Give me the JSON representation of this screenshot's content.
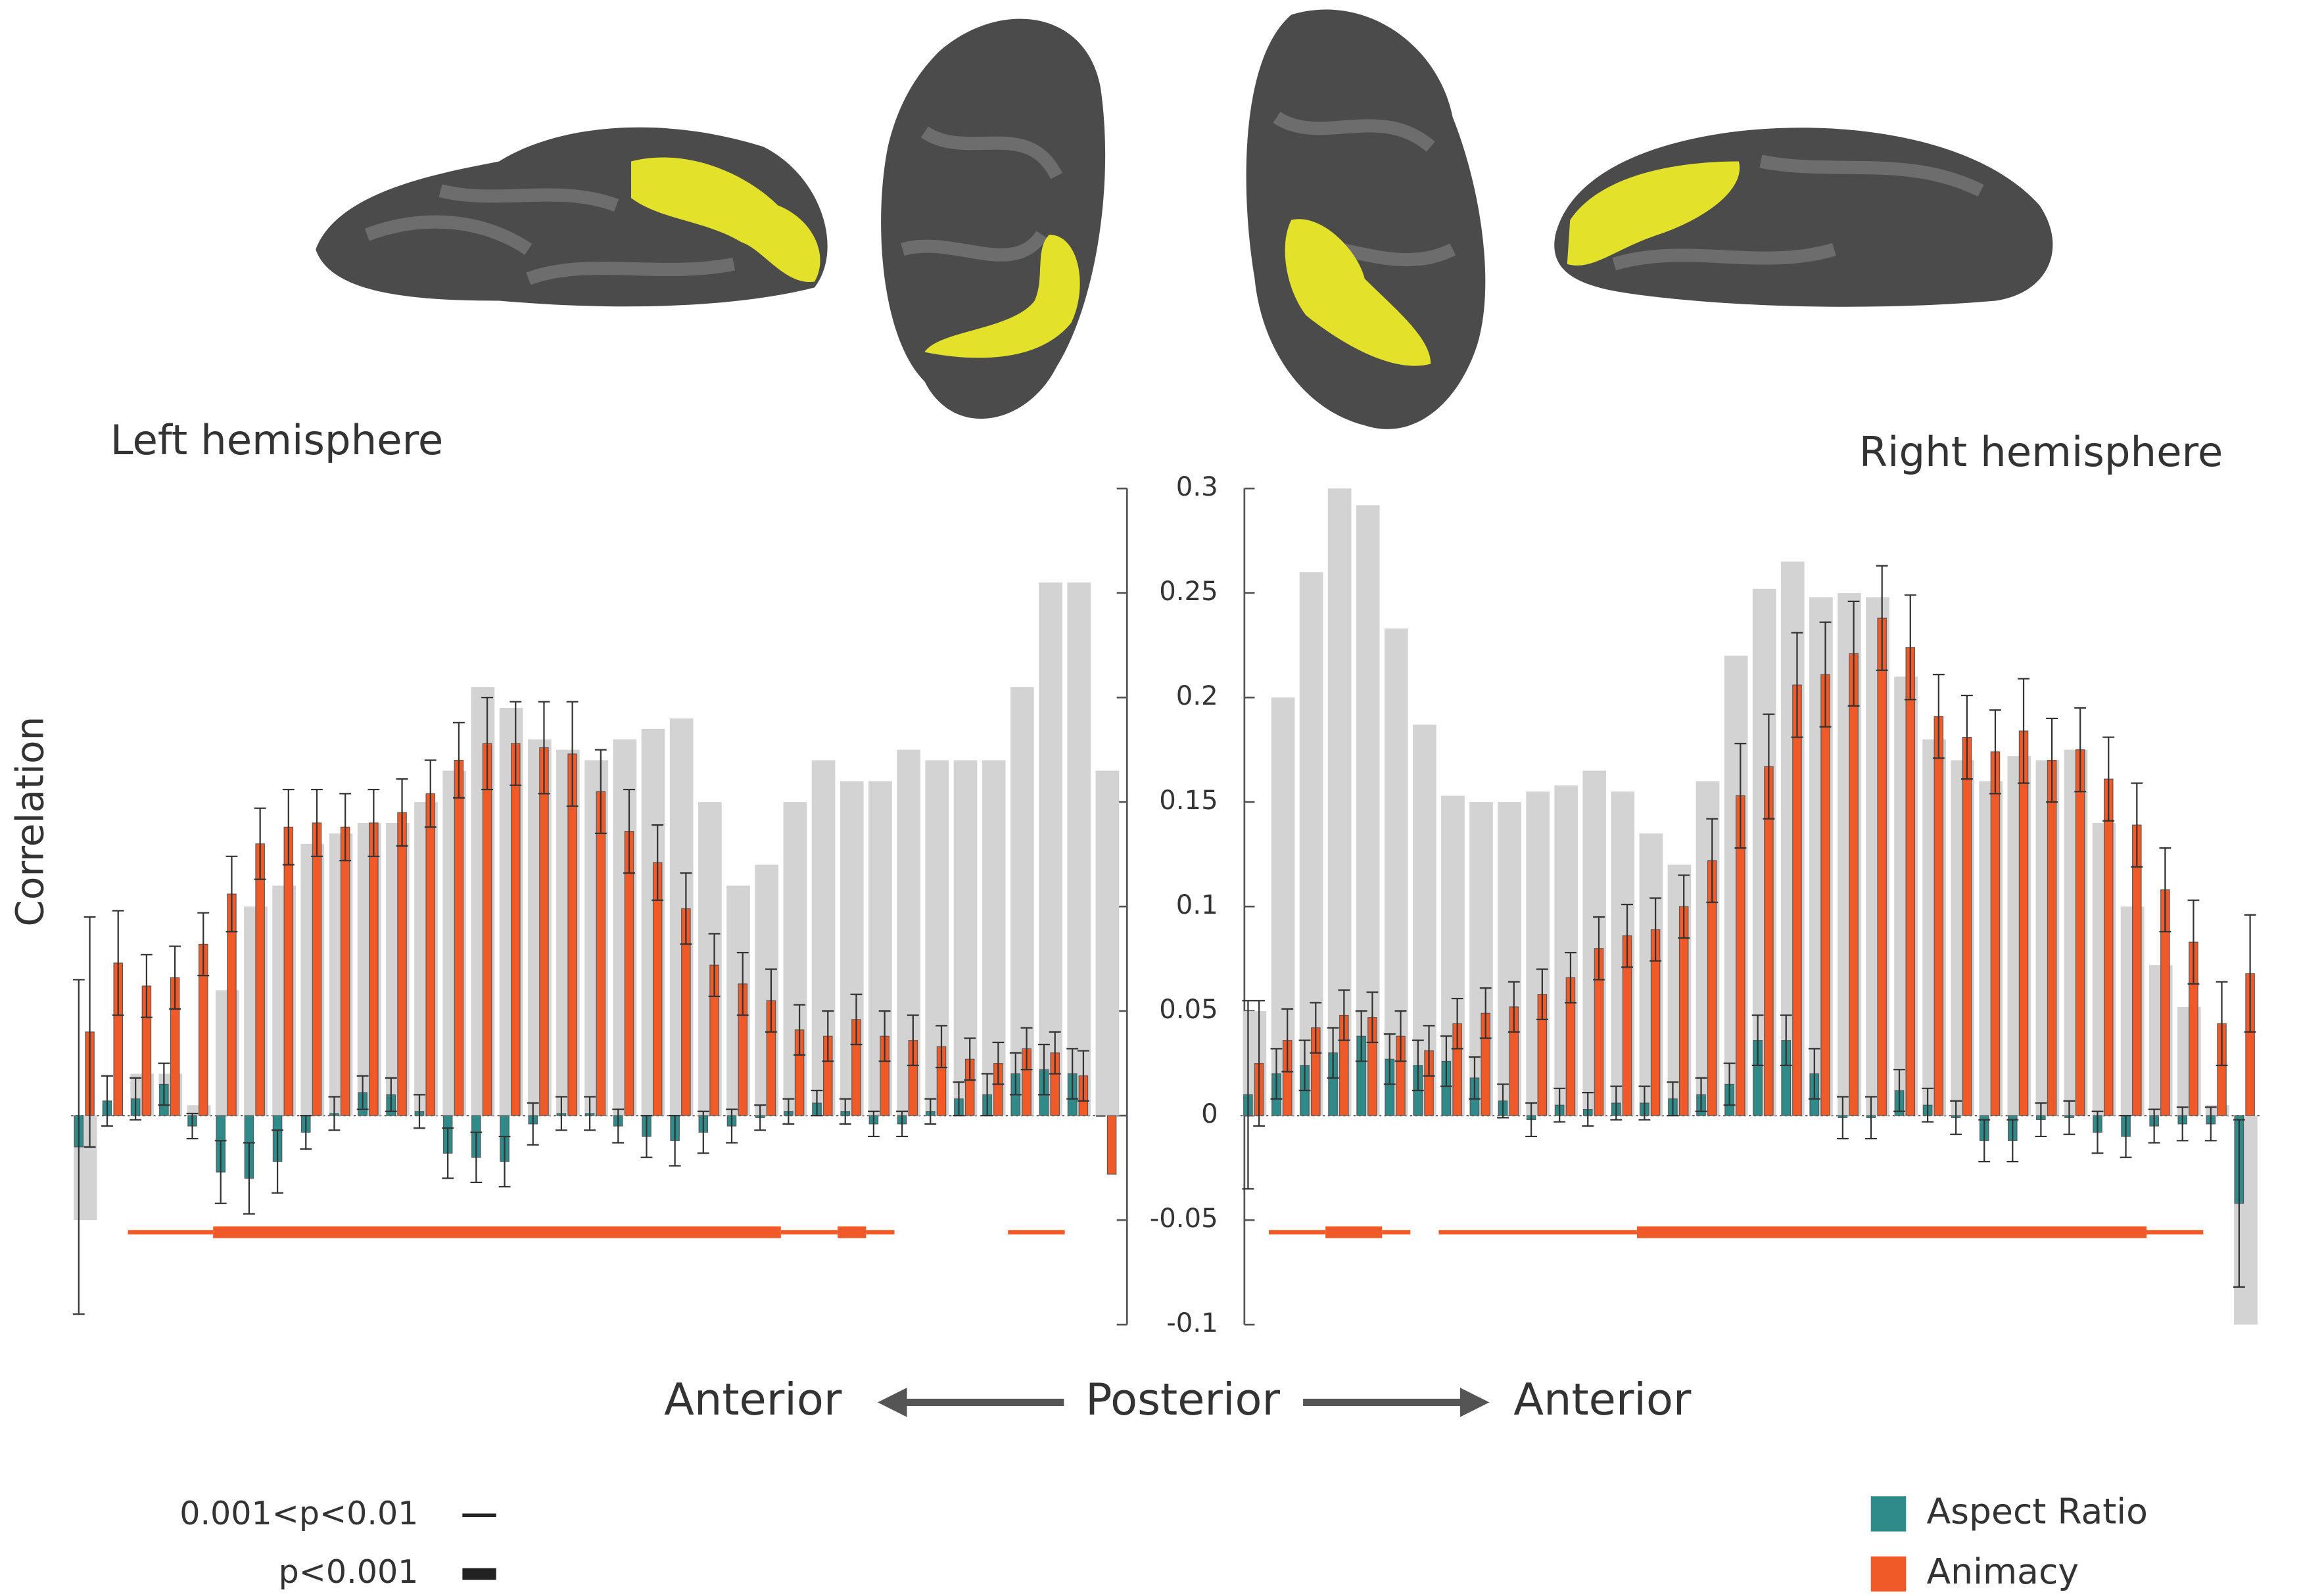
{
  "y_label": "Correlation",
  "direction": {
    "left": "Anterior",
    "center": "Posterior",
    "right": "Anterior"
  },
  "significance_legend": [
    {
      "label": "0.001<p<0.01",
      "thick": false
    },
    {
      "label": "p<0.001",
      "thick": true
    }
  ],
  "chart_data": [
    {
      "type": "bar",
      "title": "Left hemisphere",
      "ylim": [
        -0.1,
        0.3
      ],
      "yticks": [
        0.3,
        0.25,
        0.2,
        0.15,
        0.1,
        0.05,
        0,
        -0.05,
        -0.1
      ],
      "background": {
        "color": "#d3d3d3",
        "values": [
          -0.05,
          0.0,
          0.02,
          0.02,
          0.005,
          0.06,
          0.1,
          0.11,
          0.13,
          0.135,
          0.14,
          0.14,
          0.15,
          0.165,
          0.205,
          0.195,
          0.18,
          0.175,
          0.17,
          0.18,
          0.185,
          0.19,
          0.15,
          0.11,
          0.12,
          0.15,
          0.17,
          0.16,
          0.16,
          0.175,
          0.17,
          0.17,
          0.17,
          0.205,
          0.255,
          0.255,
          0.165
        ]
      },
      "series": [
        {
          "color": "#2e8b8a",
          "values": [
            -0.015,
            0.007,
            0.008,
            0.015,
            -0.005,
            -0.027,
            -0.03,
            -0.022,
            -0.008,
            0.001,
            0.011,
            0.01,
            0.002,
            -0.018,
            -0.02,
            -0.022,
            -0.004,
            0.001,
            0.001,
            -0.005,
            -0.01,
            -0.012,
            -0.008,
            -0.005,
            -0.001,
            0.002,
            0.006,
            0.002,
            -0.004,
            -0.004,
            0.002,
            0.008,
            0.01,
            0.02,
            0.022,
            0.02,
            0
          ],
          "errors": [
            0.08,
            0.012,
            0.01,
            0.01,
            0.006,
            0.015,
            0.017,
            0.015,
            0.008,
            0.008,
            0.008,
            0.008,
            0.008,
            0.012,
            0.012,
            0.012,
            0.01,
            0.008,
            0.008,
            0.008,
            0.01,
            0.012,
            0.01,
            0.008,
            0.006,
            0.006,
            0.006,
            0.006,
            0.006,
            0.006,
            0.006,
            0.008,
            0.01,
            0.01,
            0.012,
            0.012,
            0
          ]
        },
        {
          "color": "#f05a28",
          "values": [
            0.04,
            0.073,
            0.062,
            0.066,
            0.082,
            0.106,
            0.13,
            0.138,
            0.14,
            0.138,
            0.14,
            0.145,
            0.154,
            0.17,
            0.178,
            0.178,
            0.176,
            0.173,
            0.155,
            0.136,
            0.121,
            0.099,
            0.072,
            0.063,
            0.055,
            0.041,
            0.038,
            0.046,
            0.038,
            0.036,
            0.033,
            0.027,
            0.025,
            0.032,
            0.03,
            0.019,
            -0.028
          ],
          "errors": [
            0.055,
            0.025,
            0.015,
            0.015,
            0.015,
            0.018,
            0.017,
            0.018,
            0.016,
            0.016,
            0.016,
            0.016,
            0.016,
            0.018,
            0.022,
            0.02,
            0.022,
            0.025,
            0.02,
            0.02,
            0.018,
            0.017,
            0.015,
            0.015,
            0.015,
            0.012,
            0.012,
            0.012,
            0.012,
            0.012,
            0.01,
            0.01,
            0.01,
            0.01,
            0.01,
            0.012,
            0
          ]
        }
      ],
      "significance": [
        {
          "from": 2,
          "to": 4,
          "thick": false
        },
        {
          "from": 5,
          "to": 24,
          "thick": true
        },
        {
          "from": 25,
          "to": 26,
          "thick": false
        },
        {
          "from": 27,
          "to": 27,
          "thick": true
        },
        {
          "from": 28,
          "to": 28,
          "thick": false
        },
        {
          "from": 33,
          "to": 34,
          "thick": false
        }
      ]
    },
    {
      "type": "bar",
      "title": "Right hemisphere",
      "ylim": [
        -0.1,
        0.3
      ],
      "yticks": [
        0.3,
        0.25,
        0.2,
        0.15,
        0.1,
        0.05,
        0,
        -0.05,
        -0.1
      ],
      "background": {
        "color": "#d3d3d3",
        "values": [
          0.05,
          0.2,
          0.26,
          0.3,
          0.292,
          0.233,
          0.187,
          0.153,
          0.15,
          0.15,
          0.155,
          0.158,
          0.165,
          0.155,
          0.135,
          0.12,
          0.16,
          0.22,
          0.252,
          0.265,
          0.248,
          0.25,
          0.248,
          0.21,
          0.18,
          0.17,
          0.16,
          0.172,
          0.17,
          0.175,
          0.14,
          0.1,
          0.072,
          0.052,
          0.005,
          -0.1
        ]
      },
      "series": [
        {
          "name": "Aspect Ratio",
          "color": "#2e8b8a",
          "values": [
            0.01,
            0.02,
            0.024,
            0.03,
            0.038,
            0.027,
            0.024,
            0.026,
            0.018,
            0.007,
            -0.002,
            0.005,
            0.003,
            0.006,
            0.006,
            0.008,
            0.01,
            0.015,
            0.036,
            0.036,
            0.02,
            -0.001,
            -0.001,
            0.012,
            0.005,
            -0.001,
            -0.012,
            -0.012,
            -0.002,
            -0.001,
            -0.008,
            -0.01,
            -0.005,
            -0.004,
            -0.004,
            -0.042
          ],
          "errors": [
            0.045,
            0.012,
            0.012,
            0.012,
            0.012,
            0.012,
            0.012,
            0.012,
            0.01,
            0.008,
            0.008,
            0.008,
            0.008,
            0.008,
            0.008,
            0.008,
            0.008,
            0.01,
            0.012,
            0.012,
            0.012,
            0.01,
            0.01,
            0.01,
            0.008,
            0.008,
            0.01,
            0.01,
            0.008,
            0.008,
            0.01,
            0.01,
            0.008,
            0.008,
            0.008,
            0.04
          ]
        },
        {
          "name": "Animacy",
          "color": "#f05a28",
          "values": [
            0.025,
            0.036,
            0.042,
            0.048,
            0.047,
            0.038,
            0.031,
            0.044,
            0.049,
            0.052,
            0.058,
            0.066,
            0.08,
            0.086,
            0.089,
            0.1,
            0.122,
            0.153,
            0.167,
            0.206,
            0.211,
            0.221,
            0.238,
            0.224,
            0.191,
            0.181,
            0.174,
            0.184,
            0.17,
            0.175,
            0.161,
            0.139,
            0.108,
            0.083,
            0.044,
            0.068
          ],
          "errors": [
            0.03,
            0.015,
            0.012,
            0.012,
            0.012,
            0.012,
            0.012,
            0.012,
            0.012,
            0.012,
            0.012,
            0.012,
            0.015,
            0.015,
            0.015,
            0.015,
            0.02,
            0.025,
            0.025,
            0.025,
            0.025,
            0.025,
            0.025,
            0.025,
            0.02,
            0.02,
            0.02,
            0.025,
            0.02,
            0.02,
            0.02,
            0.02,
            0.02,
            0.02,
            0.02,
            0.028
          ]
        }
      ],
      "significance": [
        {
          "from": 1,
          "to": 2,
          "thick": false
        },
        {
          "from": 3,
          "to": 4,
          "thick": true
        },
        {
          "from": 5,
          "to": 5,
          "thick": false
        },
        {
          "from": 7,
          "to": 13,
          "thick": false
        },
        {
          "from": 14,
          "to": 31,
          "thick": true
        },
        {
          "from": 32,
          "to": 33,
          "thick": false
        }
      ]
    }
  ]
}
